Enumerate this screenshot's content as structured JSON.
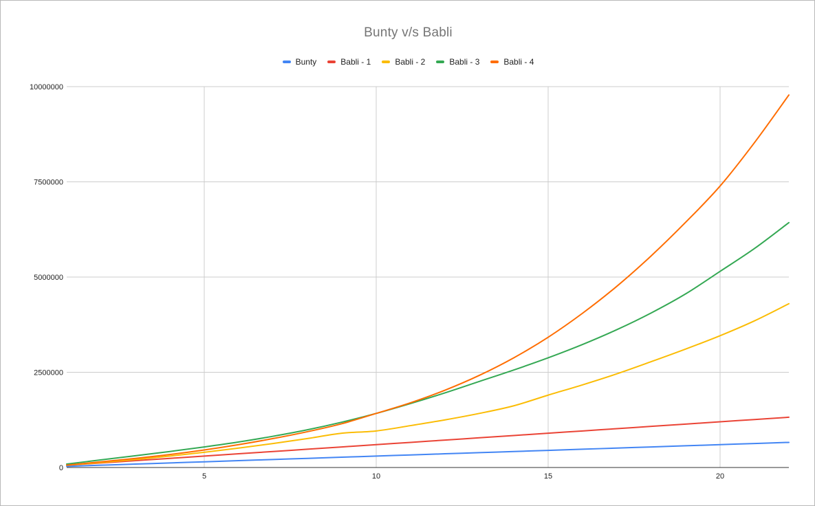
{
  "chart_data": {
    "type": "line",
    "title": "Bunty v/s Babli",
    "xlabel": "",
    "ylabel": "",
    "xlim": [
      1,
      22
    ],
    "ylim": [
      0,
      10000000
    ],
    "x_ticks": [
      "5",
      "10",
      "15",
      "20"
    ],
    "y_ticks": [
      "0",
      "2500000",
      "5000000",
      "7500000",
      "10000000"
    ],
    "grid": true,
    "legend_position": "top",
    "x": [
      1,
      2,
      3,
      4,
      5,
      6,
      7,
      8,
      9,
      10,
      11,
      12,
      13,
      14,
      15,
      16,
      17,
      18,
      19,
      20,
      21,
      22
    ],
    "series": [
      {
        "name": "Bunty",
        "color": "#4285f4",
        "values": [
          30000,
          60000,
          90000,
          120000,
          150000,
          180000,
          210000,
          240000,
          270000,
          300000,
          330000,
          360000,
          390000,
          420000,
          450000,
          480000,
          510000,
          540000,
          570000,
          600000,
          630000,
          660000
        ]
      },
      {
        "name": "Babli - 1",
        "color": "#ea4335",
        "values": [
          60000,
          120000,
          180000,
          240000,
          300000,
          360000,
          420000,
          480000,
          540000,
          600000,
          660000,
          720000,
          780000,
          840000,
          900000,
          960000,
          1020000,
          1080000,
          1140000,
          1200000,
          1260000,
          1320000
        ]
      },
      {
        "name": "Babli - 2",
        "color": "#fbbc04",
        "values": [
          60000,
          130000,
          210000,
          300000,
          400000,
          510000,
          630000,
          760000,
          900000,
          960000,
          1100000,
          1250000,
          1420000,
          1620000,
          1900000,
          2170000,
          2460000,
          2780000,
          3110000,
          3460000,
          3850000,
          4300000
        ]
      },
      {
        "name": "Babli - 3",
        "color": "#34a853",
        "values": [
          90000,
          200000,
          310000,
          420000,
          540000,
          670000,
          820000,
          990000,
          1190000,
          1420000,
          1680000,
          1960000,
          2260000,
          2560000,
          2880000,
          3230000,
          3620000,
          4060000,
          4560000,
          5150000,
          5750000,
          6430000
        ]
      },
      {
        "name": "Babli - 4",
        "color": "#ff6d01",
        "values": [
          60000,
          150000,
          240000,
          340000,
          460000,
          600000,
          760000,
          940000,
          1150000,
          1420000,
          1700000,
          2030000,
          2420000,
          2880000,
          3420000,
          4050000,
          4760000,
          5560000,
          6440000,
          7390000,
          8530000,
          9780000
        ]
      }
    ]
  }
}
